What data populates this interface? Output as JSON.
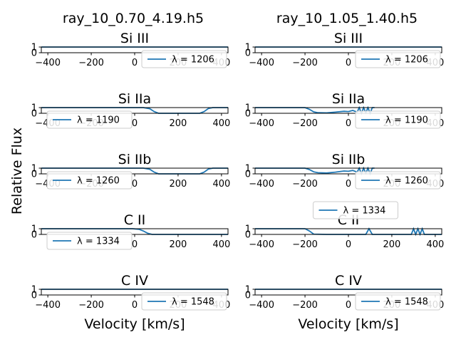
{
  "figure": {
    "ylabel": "Relative Flux",
    "columns": [
      {
        "title": "ray_10_0.70_4.19.h5",
        "xlabel": "Velocity [km/s]"
      },
      {
        "title": "ray_10_1.05_1.40.h5",
        "xlabel": "Velocity [km/s]"
      }
    ],
    "line_color": "#1f77b4"
  },
  "chart_data": [
    {
      "type": "line",
      "panel": "col1-row1",
      "title": "Si III",
      "xlim": [
        -430,
        430
      ],
      "ylim": [
        0,
        1
      ],
      "xticks": [
        "-400",
        "-200",
        "0",
        "200",
        "400"
      ],
      "yticks": [
        "0",
        "1"
      ],
      "legend": "λ = 1206",
      "legend_loc": "lower-right",
      "series": [
        {
          "name": "λ = 1206",
          "x": [
            -430,
            430
          ],
          "y": [
            1,
            1
          ]
        }
      ]
    },
    {
      "type": "line",
      "panel": "col1-row2",
      "title": "Si IIa",
      "xlim": [
        -430,
        430
      ],
      "ylim": [
        0,
        1
      ],
      "xticks": [
        "-400",
        "-200",
        "0",
        "200",
        "400"
      ],
      "yticks": [
        "0",
        "1"
      ],
      "legend": "λ = 1190",
      "legend_loc": "lower-left",
      "series": [
        {
          "name": "λ = 1190",
          "x": [
            -430,
            40,
            70,
            90,
            110,
            300,
            320,
            340,
            360,
            430
          ],
          "y": [
            1,
            1,
            0.8,
            0.3,
            0,
            0,
            0.3,
            0.85,
            1,
            1
          ]
        }
      ]
    },
    {
      "type": "line",
      "panel": "col1-row3",
      "title": "Si IIb",
      "xlim": [
        -430,
        430
      ],
      "ylim": [
        0,
        1
      ],
      "xticks": [
        "-400",
        "-200",
        "0",
        "200",
        "400"
      ],
      "yticks": [
        "0",
        "1"
      ],
      "legend": "λ = 1260",
      "legend_loc": "lower-left",
      "series": [
        {
          "name": "λ = 1260",
          "x": [
            -430,
            40,
            70,
            90,
            110,
            300,
            320,
            340,
            360,
            430
          ],
          "y": [
            1,
            1,
            0.8,
            0.3,
            0,
            0,
            0.3,
            0.85,
            1,
            1
          ]
        }
      ]
    },
    {
      "type": "line",
      "panel": "col1-row4",
      "title": "C II",
      "xlim": [
        -430,
        430
      ],
      "ylim": [
        0,
        1
      ],
      "xticks": [
        "0",
        "200",
        "400"
      ],
      "yticks": [
        "0",
        "1"
      ],
      "legend": "λ = 1334",
      "legend_loc": "lower-left",
      "series": [
        {
          "name": "λ = 1334",
          "x": [
            -430,
            -10,
            20,
            40,
            60,
            80,
            430
          ],
          "y": [
            1,
            1,
            0.9,
            0.6,
            0.2,
            0,
            0
          ]
        }
      ]
    },
    {
      "type": "line",
      "panel": "col1-row5",
      "title": "C IV",
      "xlim": [
        -430,
        430
      ],
      "ylim": [
        0,
        1
      ],
      "xticks": [
        "-400",
        "-200",
        "0",
        "200",
        "400"
      ],
      "yticks": [
        "0",
        "1"
      ],
      "legend": "λ = 1548",
      "legend_loc": "lower-right",
      "series": [
        {
          "name": "λ = 1548",
          "x": [
            -430,
            430
          ],
          "y": [
            1,
            1
          ]
        }
      ]
    },
    {
      "type": "line",
      "panel": "col2-row1",
      "title": "Si III",
      "xlim": [
        -430,
        430
      ],
      "ylim": [
        0,
        1
      ],
      "xticks": [
        "-400",
        "-200",
        "0",
        "200",
        "400"
      ],
      "yticks": [
        "0",
        "1"
      ],
      "legend": "λ = 1206",
      "legend_loc": "lower-right",
      "series": [
        {
          "name": "λ = 1206",
          "x": [
            -430,
            430
          ],
          "y": [
            1,
            1
          ]
        }
      ]
    },
    {
      "type": "line",
      "panel": "col2-row2",
      "title": "Si IIa",
      "xlim": [
        -430,
        430
      ],
      "ylim": [
        0,
        1
      ],
      "xticks": [
        "-400",
        "-200",
        "0",
        "200",
        "400"
      ],
      "yticks": [
        "0",
        "1"
      ],
      "legend": "λ = 1190",
      "legend_loc": "lower-right",
      "series": [
        {
          "name": "λ = 1190",
          "x": [
            -430,
            -200,
            -180,
            -160,
            -140,
            -100,
            -60,
            -20,
            0,
            20,
            40,
            50,
            60,
            70,
            80,
            90,
            100,
            110,
            120
          ],
          "y": [
            1,
            1,
            0.7,
            0.25,
            0.1,
            0.08,
            0.2,
            0.35,
            0.3,
            0.5,
            0.2,
            1,
            0,
            1,
            0.1,
            1,
            0,
            1,
            1
          ]
        }
      ]
    },
    {
      "type": "line",
      "panel": "col2-row3",
      "title": "Si IIb",
      "xlim": [
        -430,
        430
      ],
      "ylim": [
        0,
        1
      ],
      "xticks": [
        "-400",
        "-200",
        "0",
        "200",
        "400"
      ],
      "yticks": [
        "0",
        "1"
      ],
      "legend": "λ = 1260",
      "legend_loc": "lower-right",
      "series": [
        {
          "name": "λ = 1260",
          "x": [
            -430,
            -200,
            -180,
            -160,
            -140,
            -100,
            -60,
            -20,
            0,
            20,
            40,
            50,
            60,
            70,
            80,
            90,
            100,
            110,
            120
          ],
          "y": [
            1,
            1,
            0.75,
            0.35,
            0.2,
            0.15,
            0.3,
            0.5,
            0.45,
            0.6,
            0.3,
            1,
            0,
            1,
            0.1,
            1,
            0,
            1,
            1
          ]
        }
      ]
    },
    {
      "type": "line",
      "panel": "col2-row4",
      "title": "C II",
      "xlim": [
        -430,
        430
      ],
      "ylim": [
        0,
        1
      ],
      "xticks": [
        "-400",
        "-200",
        "0",
        "200",
        "400"
      ],
      "yticks": [
        "0",
        "1"
      ],
      "legend": "λ = 1334",
      "legend_loc": "upper-center",
      "series": [
        {
          "name": "λ = 1334",
          "x": [
            -430,
            -200,
            -180,
            -160,
            -100,
            -50,
            0,
            50,
            80,
            95,
            110,
            290,
            300,
            310,
            320,
            330,
            340,
            350,
            430
          ],
          "y": [
            1,
            1,
            0.6,
            0.05,
            0,
            0,
            0,
            0,
            0,
            1,
            0,
            0,
            1,
            0,
            1,
            0,
            1,
            0,
            0
          ]
        }
      ]
    },
    {
      "type": "line",
      "panel": "col2-row5",
      "title": "C IV",
      "xlim": [
        -430,
        430
      ],
      "ylim": [
        0,
        1
      ],
      "xticks": [
        "-400",
        "-200",
        "0",
        "200",
        "400"
      ],
      "yticks": [
        "0",
        "1"
      ],
      "legend": "λ = 1548",
      "legend_loc": "lower-right",
      "series": [
        {
          "name": "λ = 1548",
          "x": [
            -430,
            430
          ],
          "y": [
            1,
            1
          ]
        }
      ]
    }
  ]
}
